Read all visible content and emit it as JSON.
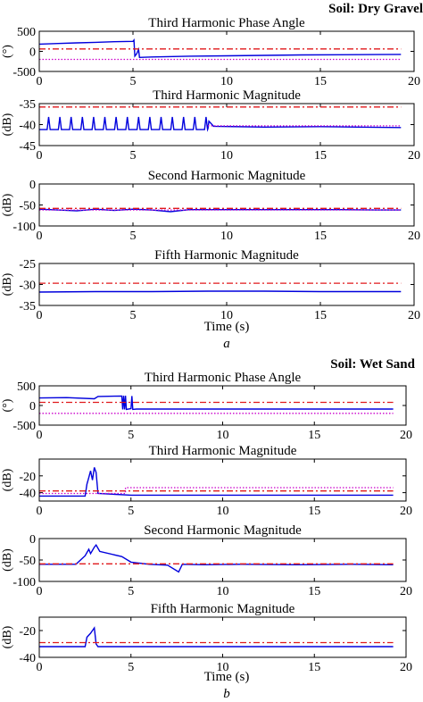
{
  "figure": {
    "parts": [
      {
        "soil_label": "Soil: Dry Gravel",
        "xlabel": "Time (s)",
        "panel_label": "a"
      },
      {
        "soil_label": "Soil: Wet Sand",
        "xlabel": "Time (s)",
        "panel_label": "b"
      }
    ]
  },
  "colors": {
    "measured": "#0000dd",
    "upper_threshold": "#e0191b",
    "lower_threshold": "#cc00cc",
    "axes": "#000000"
  },
  "chart_data": [
    {
      "type": "line",
      "part": "a",
      "title": "Third Harmonic Phase Angle",
      "ylabel": "(°)",
      "xlim": [
        0,
        20
      ],
      "ylim": [
        -500,
        500
      ],
      "xticks": [
        "0",
        "5",
        "10",
        "15",
        "20"
      ],
      "yticks": [
        "500",
        "0",
        "-500"
      ],
      "grid": false,
      "series": [
        {
          "style": "solid",
          "points": [
            [
              0,
              180
            ],
            [
              1,
              195
            ],
            [
              2,
              210
            ],
            [
              3,
              225
            ],
            [
              4,
              240
            ],
            [
              5,
              250
            ],
            [
              5.05,
              280
            ],
            [
              5.1,
              -120
            ],
            [
              5.2,
              -60
            ],
            [
              5.3,
              50
            ],
            [
              5.35,
              -150
            ],
            [
              6,
              -140
            ],
            [
              8,
              -120
            ],
            [
              10,
              -110
            ],
            [
              12,
              -100
            ],
            [
              14,
              -90
            ],
            [
              16,
              -85
            ],
            [
              18,
              -80
            ],
            [
              19.3,
              -75
            ]
          ]
        },
        {
          "style": "dashdot",
          "points": [
            [
              0,
              60
            ],
            [
              19.3,
              60
            ]
          ]
        },
        {
          "style": "dotted",
          "points": [
            [
              0,
              -200
            ],
            [
              19.3,
              -200
            ]
          ]
        }
      ]
    },
    {
      "type": "line",
      "part": "a",
      "title": "Third Harmonic Magnitude",
      "ylabel": "(dB)",
      "xlim": [
        0,
        20
      ],
      "ylim": [
        -45,
        -35
      ],
      "xticks": [
        "0",
        "5",
        "10",
        "15",
        "20"
      ],
      "yticks": [
        "-35",
        "-40",
        "-45"
      ],
      "grid": false,
      "spikes": {
        "times": [
          0.5,
          1.1,
          1.7,
          2.3,
          2.9,
          3.5,
          4.1,
          4.7,
          5.3,
          5.9,
          6.5,
          7.1,
          7.7,
          8.3,
          8.9
        ],
        "peak": -38.2,
        "base": -41.2
      },
      "series": [
        {
          "style": "solid",
          "points": [
            [
              0,
              -41.2
            ],
            [
              9,
              -41
            ],
            [
              9.05,
              -39.2
            ],
            [
              9.3,
              -40.4
            ],
            [
              12,
              -40.6
            ],
            [
              15,
              -40.5
            ],
            [
              17,
              -40.6
            ],
            [
              19.3,
              -40.7
            ]
          ]
        },
        {
          "style": "dashdot",
          "points": [
            [
              0,
              -35.8
            ],
            [
              19.3,
              -35.8
            ]
          ]
        },
        {
          "style": "dotted",
          "points": [
            [
              9,
              -40.3
            ],
            [
              19.3,
              -40.3
            ]
          ]
        }
      ]
    },
    {
      "type": "line",
      "part": "a",
      "title": "Second Harmonic Magnitude",
      "ylabel": "(dB)",
      "xlim": [
        0,
        20
      ],
      "ylim": [
        -100,
        0
      ],
      "xticks": [
        "0",
        "5",
        "10",
        "15",
        "20"
      ],
      "yticks": [
        "0",
        "-50",
        "-100"
      ],
      "grid": false,
      "series": [
        {
          "style": "solid",
          "points": [
            [
              0,
              -60
            ],
            [
              1,
              -62
            ],
            [
              2,
              -64
            ],
            [
              3,
              -60
            ],
            [
              4,
              -63
            ],
            [
              5,
              -60
            ],
            [
              6,
              -62
            ],
            [
              7,
              -66
            ],
            [
              8,
              -61
            ],
            [
              10,
              -61
            ],
            [
              12,
              -61
            ],
            [
              14,
              -61
            ],
            [
              16,
              -61
            ],
            [
              18,
              -62
            ],
            [
              19.3,
              -62
            ]
          ]
        },
        {
          "style": "dashdot",
          "points": [
            [
              0,
              -58
            ],
            [
              19.3,
              -58
            ]
          ]
        },
        {
          "style": "dotted",
          "points": [
            [
              0,
              -62
            ],
            [
              19.3,
              -62
            ]
          ]
        }
      ]
    },
    {
      "type": "line",
      "part": "a",
      "title": "Fifth Harmonic Magnitude",
      "ylabel": "(dB)",
      "xlim": [
        0,
        20
      ],
      "ylim": [
        -35,
        -25
      ],
      "xticks": [
        "0",
        "5",
        "10",
        "15",
        "20"
      ],
      "yticks": [
        "-25",
        "-30",
        "-35"
      ],
      "grid": false,
      "series": [
        {
          "style": "solid",
          "points": [
            [
              0,
              -31.8
            ],
            [
              3,
              -31.7
            ],
            [
              6,
              -31.7
            ],
            [
              9,
              -31.6
            ],
            [
              12,
              -31.6
            ],
            [
              15,
              -31.7
            ],
            [
              19.3,
              -31.7
            ]
          ]
        },
        {
          "style": "dashdot",
          "points": [
            [
              0,
              -29.7
            ],
            [
              19.3,
              -29.7
            ]
          ]
        }
      ]
    },
    {
      "type": "line",
      "part": "b",
      "title": "Third Harmonic Phase Angle",
      "ylabel": "(°)",
      "xlim": [
        0,
        20
      ],
      "ylim": [
        -500,
        500
      ],
      "xticks": [
        "0",
        "5",
        "10",
        "15",
        "20"
      ],
      "yticks": [
        "500",
        "0",
        "-500"
      ],
      "grid": false,
      "series": [
        {
          "style": "solid",
          "points": [
            [
              0,
              190
            ],
            [
              1.5,
              200
            ],
            [
              3,
              170
            ],
            [
              3.2,
              230
            ],
            [
              4.5,
              240
            ],
            [
              4.55,
              -100
            ],
            [
              4.6,
              250
            ],
            [
              4.65,
              -100
            ],
            [
              4.7,
              250
            ],
            [
              4.75,
              -100
            ],
            [
              5,
              -80
            ],
            [
              5.05,
              240
            ],
            [
              5.1,
              -100
            ],
            [
              5.3,
              -90
            ],
            [
              19.3,
              -90
            ]
          ]
        },
        {
          "style": "dashdot",
          "points": [
            [
              0,
              80
            ],
            [
              19.3,
              80
            ]
          ]
        },
        {
          "style": "dotted",
          "points": [
            [
              0,
              -200
            ],
            [
              19.3,
              -200
            ]
          ]
        }
      ]
    },
    {
      "type": "line",
      "part": "b",
      "title": "Third Harmonic Magnitude",
      "ylabel": "(dB)",
      "xlim": [
        0,
        20
      ],
      "ylim": [
        -50,
        0
      ],
      "xticks": [
        "0",
        "5",
        "10",
        "15",
        "20"
      ],
      "yticks": [
        "-20",
        "-40"
      ],
      "grid": false,
      "series": [
        {
          "style": "solid",
          "points": [
            [
              0,
              -44
            ],
            [
              2.5,
              -44
            ],
            [
              2.6,
              -30
            ],
            [
              2.7,
              -22
            ],
            [
              2.8,
              -14
            ],
            [
              2.9,
              -25
            ],
            [
              3.0,
              -10
            ],
            [
              3.1,
              -16
            ],
            [
              3.2,
              -41
            ],
            [
              5,
              -43
            ],
            [
              10,
              -43
            ],
            [
              15,
              -43
            ],
            [
              19.3,
              -43
            ]
          ]
        },
        {
          "style": "dashdot",
          "points": [
            [
              0,
              -38
            ],
            [
              19.3,
              -38
            ]
          ]
        },
        {
          "style": "dotted",
          "points": [
            [
              0,
              -41
            ],
            [
              4.7,
              -41
            ],
            [
              4.7,
              -34
            ],
            [
              19.3,
              -34
            ]
          ]
        }
      ]
    },
    {
      "type": "line",
      "part": "b",
      "title": "Second Harmonic Magnitude",
      "ylabel": "(dB)",
      "xlim": [
        0,
        20
      ],
      "ylim": [
        -100,
        0
      ],
      "xticks": [
        "0",
        "5",
        "10",
        "15",
        "20"
      ],
      "yticks": [
        "0",
        "-50",
        "-100"
      ],
      "grid": false,
      "series": [
        {
          "style": "solid",
          "points": [
            [
              0,
              -60
            ],
            [
              2,
              -60
            ],
            [
              2.5,
              -40
            ],
            [
              2.7,
              -25
            ],
            [
              2.8,
              -35
            ],
            [
              3.0,
              -20
            ],
            [
              3.1,
              -15
            ],
            [
              3.3,
              -30
            ],
            [
              4.5,
              -42
            ],
            [
              5,
              -55
            ],
            [
              6,
              -60
            ],
            [
              7,
              -62
            ],
            [
              7.6,
              -78
            ],
            [
              7.8,
              -60
            ],
            [
              9,
              -61
            ],
            [
              11,
              -60
            ],
            [
              14,
              -61
            ],
            [
              17,
              -60
            ],
            [
              19.3,
              -61
            ]
          ]
        },
        {
          "style": "dashdot",
          "points": [
            [
              0,
              -59
            ],
            [
              19.3,
              -59
            ]
          ]
        }
      ]
    },
    {
      "type": "line",
      "part": "b",
      "title": "Fifth Harmonic Magnitude",
      "ylabel": "(dB)",
      "xlim": [
        0,
        20
      ],
      "ylim": [
        -40,
        -10
      ],
      "xticks": [
        "0",
        "5",
        "10",
        "15",
        "20"
      ],
      "yticks": [
        "-20",
        "-40"
      ],
      "grid": false,
      "series": [
        {
          "style": "solid",
          "points": [
            [
              0,
              -32
            ],
            [
              2.5,
              -32
            ],
            [
              2.6,
              -25
            ],
            [
              2.8,
              -22
            ],
            [
              3.0,
              -18
            ],
            [
              3.1,
              -30
            ],
            [
              3.2,
              -32
            ],
            [
              19.3,
              -32
            ]
          ]
        },
        {
          "style": "dashdot",
          "points": [
            [
              0,
              -29
            ],
            [
              19.3,
              -29
            ]
          ]
        }
      ]
    }
  ]
}
